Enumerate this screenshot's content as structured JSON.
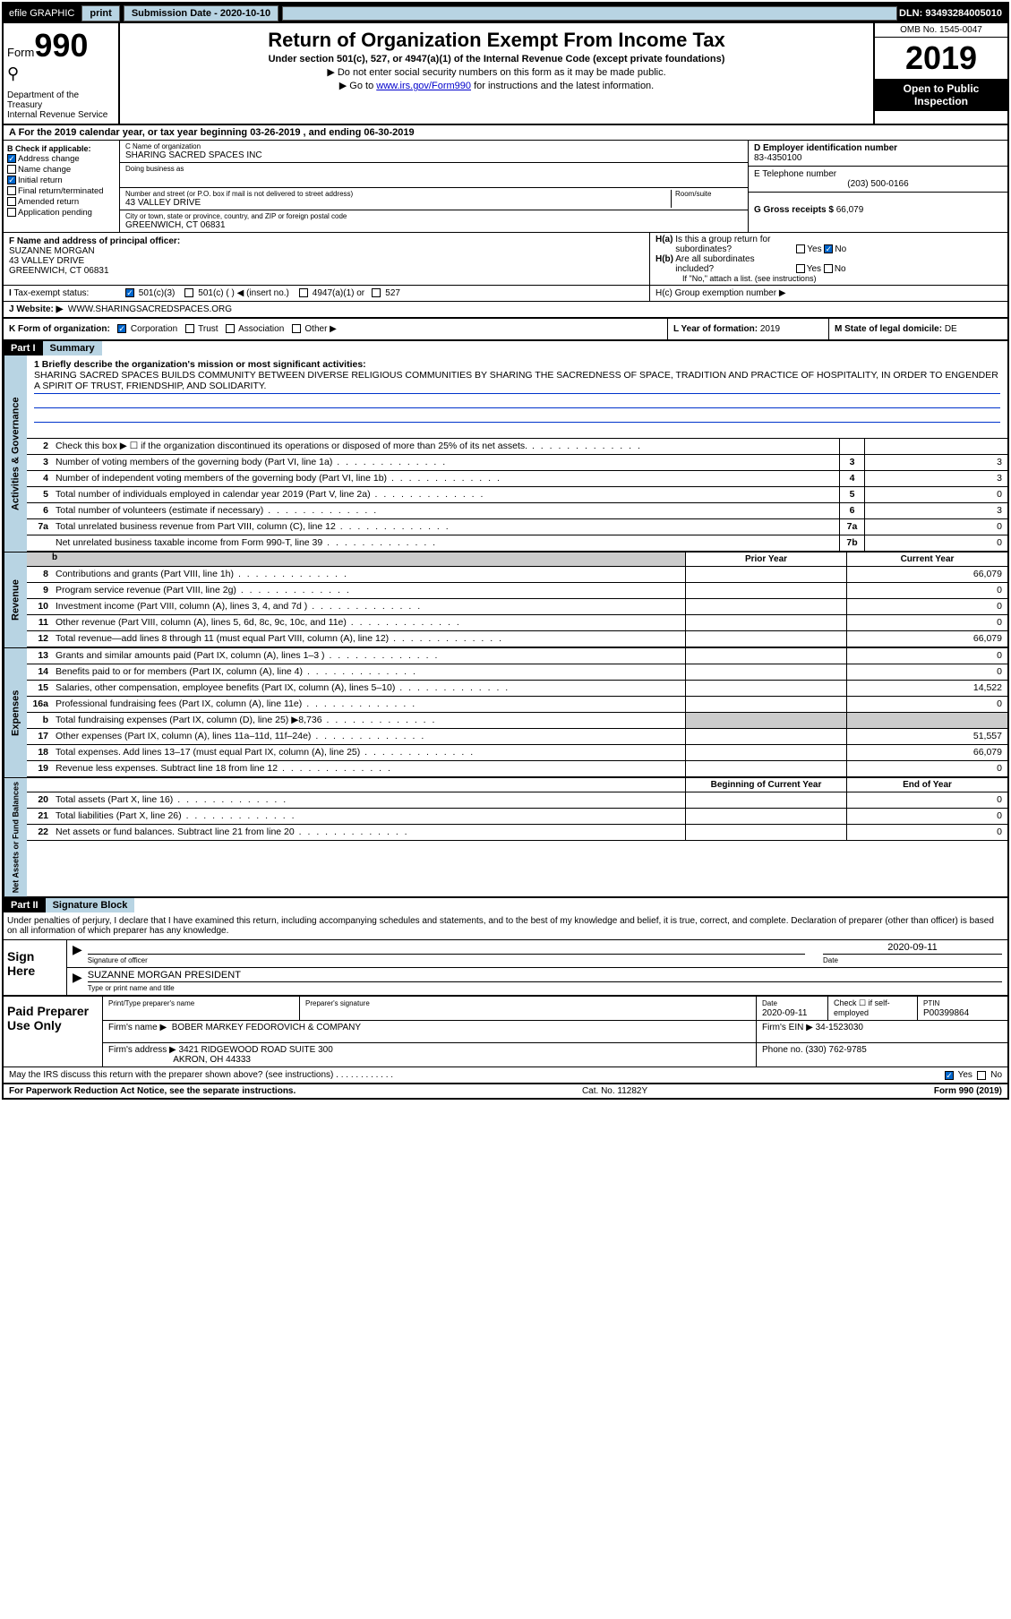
{
  "topbar": {
    "efile_label": "efile GRAPHIC",
    "print_label": "print",
    "subdate_label": "Submission Date - 2020-10-10",
    "dln_label": "DLN: 93493284005010"
  },
  "header": {
    "form_label": "Form",
    "form_num": "990",
    "dept_label": "Department of the Treasury\nInternal Revenue Service",
    "eagle_icon": "⚲",
    "title": "Return of Organization Exempt From Income Tax",
    "sub": "Under section 501(c), 527, or 4947(a)(1) of the Internal Revenue Code (except private foundations)",
    "note1": "▶ Do not enter social security numbers on this form as it may be made public.",
    "note2_pre": "▶ Go to ",
    "note2_link": "www.irs.gov/Form990",
    "note2_post": " for instructions and the latest information.",
    "omb": "OMB No. 1545-0047",
    "year": "2019",
    "open": "Open to Public Inspection"
  },
  "sec_a": "A For the 2019 calendar year, or tax year beginning 03-26-2019   , and ending 06-30-2019",
  "col_b": {
    "label": "B Check if applicable:",
    "items": [
      "Address change",
      "Name change",
      "Initial return",
      "Final return/terminated",
      "Amended return",
      "Application pending"
    ],
    "checked": [
      true,
      false,
      true,
      false,
      false,
      false
    ]
  },
  "col_c": {
    "name_lbl": "C Name of organization",
    "name": "SHARING SACRED SPACES INC",
    "dba_lbl": "Doing business as",
    "dba": "",
    "addr_lbl": "Number and street (or P.O. box if mail is not delivered to street address)",
    "room_lbl": "Room/suite",
    "addr": "43 VALLEY DRIVE",
    "city_lbl": "City or town, state or province, country, and ZIP or foreign postal code",
    "city": "GREENWICH, CT  06831"
  },
  "col_de": {
    "d_lbl": "D Employer identification number",
    "ein": "83-4350100",
    "e_lbl": "E Telephone number",
    "phone": "(203) 500-0166",
    "g_lbl": "G Gross receipts $",
    "gross": "66,079"
  },
  "row_fg": {
    "f_lbl": "F Name and address of principal officer:",
    "f_name": "SUZANNE MORGAN",
    "f_addr1": "43 VALLEY DRIVE",
    "f_addr2": "GREENWICH, CT  06831",
    "ha_lbl": "H(a)  Is this a group return for subordinates?",
    "ha_yes": "Yes",
    "ha_no": "No",
    "hb_lbl": "H(b)  Are all subordinates included?",
    "hb_note": "If \"No,\" attach a list. (see instructions)",
    "hc_lbl": "H(c)  Group exemption number ▶"
  },
  "tax": {
    "i_lbl": "I  Tax-exempt status:",
    "opt1": "501(c)(3)",
    "opt2": "501(c) (   ) ◀ (insert no.)",
    "opt3": "4947(a)(1) or",
    "opt4": "527"
  },
  "j": {
    "lbl": "J  Website: ▶",
    "val": "WWW.SHARINGSACREDSPACES.ORG"
  },
  "k": {
    "lbl": "K Form of organization:",
    "opts": [
      "Corporation",
      "Trust",
      "Association",
      "Other ▶"
    ],
    "l_lbl": "L Year of formation:",
    "l_val": "2019",
    "m_lbl": "M State of legal domicile:",
    "m_val": "DE"
  },
  "part1": {
    "label": "Part I",
    "title": "Summary"
  },
  "mission": {
    "lbl": "1  Briefly describe the organization's mission or most significant activities:",
    "text": "SHARING SACRED SPACES BUILDS COMMUNITY BETWEEN DIVERSE RELIGIOUS COMMUNITIES BY SHARING THE SACREDNESS OF SPACE, TRADITION AND PRACTICE OF HOSPITALITY, IN ORDER TO ENGENDER A SPIRIT OF TRUST, FRIENDSHIP, AND SOLIDARITY."
  },
  "gov_lines": [
    {
      "n": "2",
      "d": "Check this box ▶ ☐  if the organization discontinued its operations or disposed of more than 25% of its net assets.",
      "num": "",
      "val": ""
    },
    {
      "n": "3",
      "d": "Number of voting members of the governing body (Part VI, line 1a)",
      "num": "3",
      "val": "3"
    },
    {
      "n": "4",
      "d": "Number of independent voting members of the governing body (Part VI, line 1b)",
      "num": "4",
      "val": "3"
    },
    {
      "n": "5",
      "d": "Total number of individuals employed in calendar year 2019 (Part V, line 2a)",
      "num": "5",
      "val": "0"
    },
    {
      "n": "6",
      "d": "Total number of volunteers (estimate if necessary)",
      "num": "6",
      "val": "3"
    },
    {
      "n": "7a",
      "d": "Total unrelated business revenue from Part VIII, column (C), line 12",
      "num": "7a",
      "val": "0"
    },
    {
      "n": "",
      "d": "Net unrelated business taxable income from Form 990-T, line 39",
      "num": "7b",
      "val": "0"
    }
  ],
  "colhdr": {
    "prior": "Prior Year",
    "curr": "Current Year"
  },
  "rev_lines": [
    {
      "n": "8",
      "d": "Contributions and grants (Part VIII, line 1h)",
      "prior": "",
      "curr": "66,079"
    },
    {
      "n": "9",
      "d": "Program service revenue (Part VIII, line 2g)",
      "prior": "",
      "curr": "0"
    },
    {
      "n": "10",
      "d": "Investment income (Part VIII, column (A), lines 3, 4, and 7d )",
      "prior": "",
      "curr": "0"
    },
    {
      "n": "11",
      "d": "Other revenue (Part VIII, column (A), lines 5, 6d, 8c, 9c, 10c, and 11e)",
      "prior": "",
      "curr": "0"
    },
    {
      "n": "12",
      "d": "Total revenue—add lines 8 through 11 (must equal Part VIII, column (A), line 12)",
      "prior": "",
      "curr": "66,079"
    }
  ],
  "exp_lines": [
    {
      "n": "13",
      "d": "Grants and similar amounts paid (Part IX, column (A), lines 1–3 )",
      "prior": "",
      "curr": "0"
    },
    {
      "n": "14",
      "d": "Benefits paid to or for members (Part IX, column (A), line 4)",
      "prior": "",
      "curr": "0"
    },
    {
      "n": "15",
      "d": "Salaries, other compensation, employee benefits (Part IX, column (A), lines 5–10)",
      "prior": "",
      "curr": "14,522"
    },
    {
      "n": "16a",
      "d": "Professional fundraising fees (Part IX, column (A), line 11e)",
      "prior": "",
      "curr": "0"
    },
    {
      "n": "b",
      "d": "Total fundraising expenses (Part IX, column (D), line 25) ▶8,736",
      "prior": "shaded",
      "curr": "shaded"
    },
    {
      "n": "17",
      "d": "Other expenses (Part IX, column (A), lines 11a–11d, 11f–24e)",
      "prior": "",
      "curr": "51,557"
    },
    {
      "n": "18",
      "d": "Total expenses. Add lines 13–17 (must equal Part IX, column (A), line 25)",
      "prior": "",
      "curr": "66,079"
    },
    {
      "n": "19",
      "d": "Revenue less expenses. Subtract line 18 from line 12",
      "prior": "",
      "curr": "0"
    }
  ],
  "net_hdr": {
    "beg": "Beginning of Current Year",
    "end": "End of Year"
  },
  "net_lines": [
    {
      "n": "20",
      "d": "Total assets (Part X, line 16)",
      "prior": "",
      "curr": "0"
    },
    {
      "n": "21",
      "d": "Total liabilities (Part X, line 26)",
      "prior": "",
      "curr": "0"
    },
    {
      "n": "22",
      "d": "Net assets or fund balances. Subtract line 21 from line 20",
      "prior": "",
      "curr": "0"
    }
  ],
  "vlabels": {
    "gov": "Activities & Governance",
    "rev": "Revenue",
    "exp": "Expenses",
    "net": "Net Assets or Fund Balances"
  },
  "part2": {
    "label": "Part II",
    "title": "Signature Block",
    "decl": "Under penalties of perjury, I declare that I have examined this return, including accompanying schedules and statements, and to the best of my knowledge and belief, it is true, correct, and complete. Declaration of preparer (other than officer) is based on all information of which preparer has any knowledge."
  },
  "sign": {
    "here": "Sign Here",
    "sig_lbl": "Signature of officer",
    "date_lbl": "Date",
    "date_val": "2020-09-11",
    "name": "SUZANNE MORGAN  PRESIDENT",
    "name_lbl": "Type or print name and title"
  },
  "prep": {
    "here": "Paid Preparer Use Only",
    "h1": "Print/Type preparer's name",
    "h2": "Preparer's signature",
    "h3": "Date",
    "h3v": "2020-09-11",
    "h4": "Check ☐ if self-employed",
    "h5": "PTIN",
    "h5v": "P00399864",
    "firm_lbl": "Firm's name    ▶",
    "firm": "BOBER MARKEY FEDOROVICH & COMPANY",
    "ein_lbl": "Firm's EIN ▶",
    "ein": "34-1523030",
    "addr_lbl": "Firm's address ▶",
    "addr1": "3421 RIDGEWOOD ROAD SUITE 300",
    "addr2": "AKRON, OH  44333",
    "phone_lbl": "Phone no.",
    "phone": "(330) 762-9785"
  },
  "discuss": "May the IRS discuss this return with the preparer shown above? (see instructions)   .    .    .    .    .    .    .    .    .    .    .    .",
  "foot": {
    "l": "For Paperwork Reduction Act Notice, see the separate instructions.",
    "m": "Cat. No. 11282Y",
    "r": "Form 990 (2019)"
  }
}
